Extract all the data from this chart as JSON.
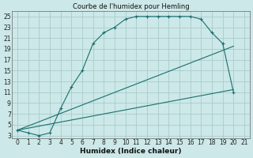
{
  "title": "Courbe de l'humidex pour Hemling",
  "xlabel": "Humidex (Indice chaleur)",
  "bg_color": "#cce8e8",
  "grid_color": "#aacccc",
  "line_color": "#1a6e6e",
  "xlim": [
    -0.5,
    21.5
  ],
  "ylim": [
    2.5,
    26
  ],
  "xticks": [
    0,
    1,
    2,
    3,
    4,
    5,
    6,
    7,
    8,
    9,
    10,
    11,
    12,
    13,
    14,
    15,
    16,
    17,
    18,
    19,
    20,
    21
  ],
  "yticks": [
    3,
    5,
    7,
    9,
    11,
    13,
    15,
    17,
    19,
    21,
    23,
    25
  ],
  "curve1_x": [
    0,
    1,
    2,
    3,
    4,
    5,
    6,
    7,
    8,
    9,
    10,
    11,
    12,
    13,
    14,
    15,
    16,
    17,
    18,
    19,
    20
  ],
  "curve1_y": [
    4,
    3.5,
    3,
    3.5,
    8,
    12,
    15,
    20,
    22,
    23,
    24.5,
    25,
    25,
    25,
    25,
    25,
    25,
    24.5,
    22,
    20,
    11
  ],
  "curve2_x": [
    0,
    20
  ],
  "curve2_y": [
    4,
    11.5
  ],
  "curve3_x": [
    0,
    20
  ],
  "curve3_y": [
    4,
    19.5
  ],
  "title_fontsize": 6.0,
  "xlabel_fontsize": 6.5,
  "tick_fontsize": 5.5
}
